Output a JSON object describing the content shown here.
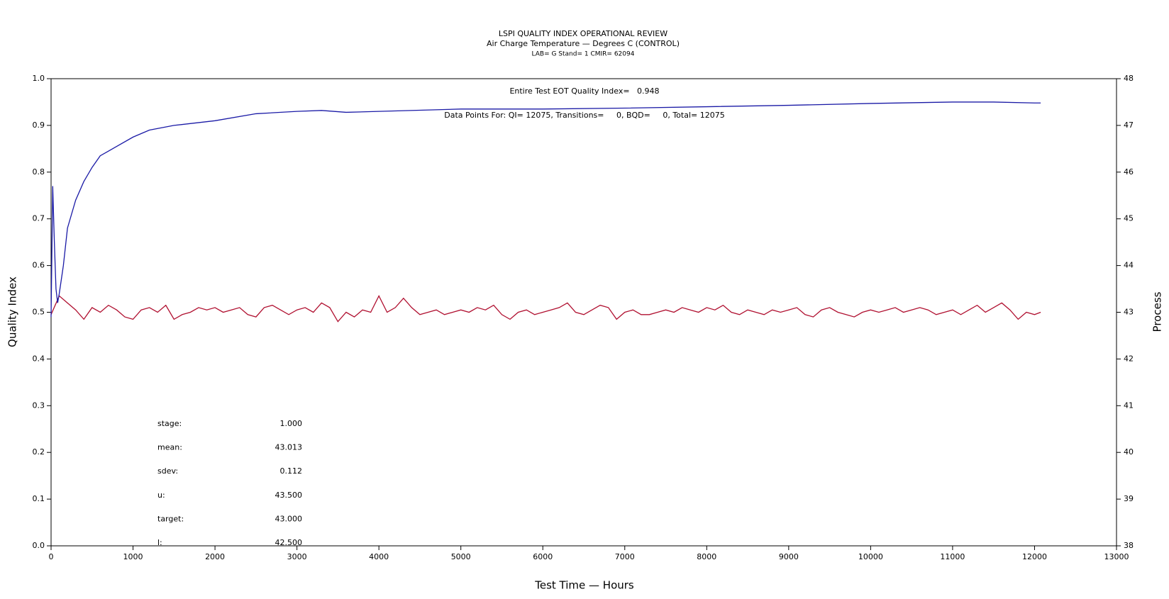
{
  "chart_data": {
    "type": "line",
    "title": "LSPI QUALITY INDEX OPERATIONAL REVIEW",
    "subtitle": "Air Charge Temperature — Degrees C (CONTROL)",
    "subtitle2": "LAB= G Stand= 1 CMIR= 62094",
    "annotations": [
      "Entire Test EOT Quality Index=   0.948",
      "Data Points For: QI= 12075, Transitions=     0, BQD=     0, Total= 12075"
    ],
    "stats": [
      {
        "label": "stage:",
        "value": "1.000"
      },
      {
        "label": "mean:",
        "value": "43.013"
      },
      {
        "label": "sdev:",
        "value": "0.112"
      },
      {
        "label": "u:",
        "value": "43.500"
      },
      {
        "label": "target:",
        "value": "43.000"
      },
      {
        "label": "l:",
        "value": "42.500"
      }
    ],
    "xlabel": "Test Time — Hours",
    "ylabel": "Quality Index",
    "y2label": "Process",
    "xlim": [
      0,
      13000
    ],
    "xticks": [
      0,
      1000,
      2000,
      3000,
      4000,
      5000,
      6000,
      7000,
      8000,
      9000,
      10000,
      11000,
      12000,
      13000
    ],
    "ylim": [
      0,
      1
    ],
    "yticks": [
      {
        "value": 0,
        "label": "0.0"
      },
      0.1,
      0.2,
      0.3,
      0.4,
      0.5,
      0.6,
      0.7,
      0.8,
      0.9,
      {
        "value": 1,
        "label": "1.0"
      }
    ],
    "y2lim": [
      38,
      48
    ],
    "y2ticks": [
      38,
      39,
      40,
      41,
      42,
      43,
      44,
      45,
      46,
      47,
      48
    ],
    "series": [
      {
        "name": "Quality Index",
        "color": "#1a1aa6",
        "axis": "y",
        "x": [
          0,
          20,
          40,
          60,
          80,
          100,
          150,
          200,
          300,
          400,
          500,
          600,
          700,
          800,
          1000,
          1200,
          1500,
          2000,
          2500,
          3000,
          3300,
          3600,
          4000,
          5000,
          6000,
          7000,
          8000,
          9000,
          10000,
          11000,
          11500,
          12000,
          12075
        ],
        "values": [
          0.49,
          0.77,
          0.65,
          0.55,
          0.52,
          0.54,
          0.6,
          0.68,
          0.74,
          0.78,
          0.81,
          0.835,
          0.845,
          0.855,
          0.875,
          0.89,
          0.9,
          0.91,
          0.925,
          0.93,
          0.932,
          0.928,
          0.93,
          0.935,
          0.935,
          0.937,
          0.94,
          0.943,
          0.947,
          0.95,
          0.95,
          0.948,
          0.948
        ]
      },
      {
        "name": "Process",
        "color": "#b01030",
        "axis": "y2",
        "x": [
          0,
          100,
          200,
          300,
          400,
          500,
          600,
          700,
          800,
          900,
          1000,
          1100,
          1200,
          1300,
          1400,
          1500,
          1600,
          1700,
          1800,
          1900,
          2000,
          2100,
          2200,
          2300,
          2400,
          2500,
          2600,
          2700,
          2800,
          2900,
          3000,
          3100,
          3200,
          3300,
          3400,
          3500,
          3600,
          3700,
          3800,
          3900,
          4000,
          4100,
          4200,
          4300,
          4400,
          4500,
          4600,
          4700,
          4800,
          4900,
          5000,
          5100,
          5200,
          5300,
          5400,
          5500,
          5600,
          5700,
          5800,
          5900,
          6000,
          6100,
          6200,
          6300,
          6400,
          6500,
          6600,
          6700,
          6800,
          6900,
          7000,
          7100,
          7200,
          7300,
          7400,
          7500,
          7600,
          7700,
          7800,
          7900,
          8000,
          8100,
          8200,
          8300,
          8400,
          8500,
          8600,
          8700,
          8800,
          8900,
          9000,
          9100,
          9200,
          9300,
          9400,
          9500,
          9600,
          9700,
          9800,
          9900,
          10000,
          10100,
          10200,
          10300,
          10400,
          10500,
          10600,
          10700,
          10800,
          10900,
          11000,
          11100,
          11200,
          11300,
          11400,
          11500,
          11600,
          11700,
          11800,
          11900,
          12000,
          12075
        ],
        "values": [
          42.95,
          43.35,
          43.2,
          43.05,
          42.85,
          43.1,
          43.0,
          43.15,
          43.05,
          42.9,
          42.85,
          43.05,
          43.1,
          43.0,
          43.15,
          42.85,
          42.95,
          43.0,
          43.1,
          43.05,
          43.1,
          43.0,
          43.05,
          43.1,
          42.95,
          42.9,
          43.1,
          43.15,
          43.05,
          42.95,
          43.05,
          43.1,
          43.0,
          43.2,
          43.1,
          42.8,
          43.0,
          42.9,
          43.05,
          43.0,
          43.35,
          43.0,
          43.1,
          43.3,
          43.1,
          42.95,
          43.0,
          43.05,
          42.95,
          43.0,
          43.05,
          43.0,
          43.1,
          43.05,
          43.15,
          42.95,
          42.85,
          43.0,
          43.05,
          42.95,
          43.0,
          43.05,
          43.1,
          43.2,
          43.0,
          42.95,
          43.05,
          43.15,
          43.1,
          42.85,
          43.0,
          43.05,
          42.95,
          42.95,
          43.0,
          43.05,
          43.0,
          43.1,
          43.05,
          43.0,
          43.1,
          43.05,
          43.15,
          43.0,
          42.95,
          43.05,
          43.0,
          42.95,
          43.05,
          43.0,
          43.05,
          43.1,
          42.95,
          42.9,
          43.05,
          43.1,
          43.0,
          42.95,
          42.9,
          43.0,
          43.05,
          43.0,
          43.05,
          43.1,
          43.0,
          43.05,
          43.1,
          43.05,
          42.95,
          43.0,
          43.05,
          42.95,
          43.05,
          43.15,
          43.0,
          43.1,
          43.2,
          43.05,
          42.85,
          43.0,
          42.95,
          43.0
        ]
      }
    ]
  }
}
